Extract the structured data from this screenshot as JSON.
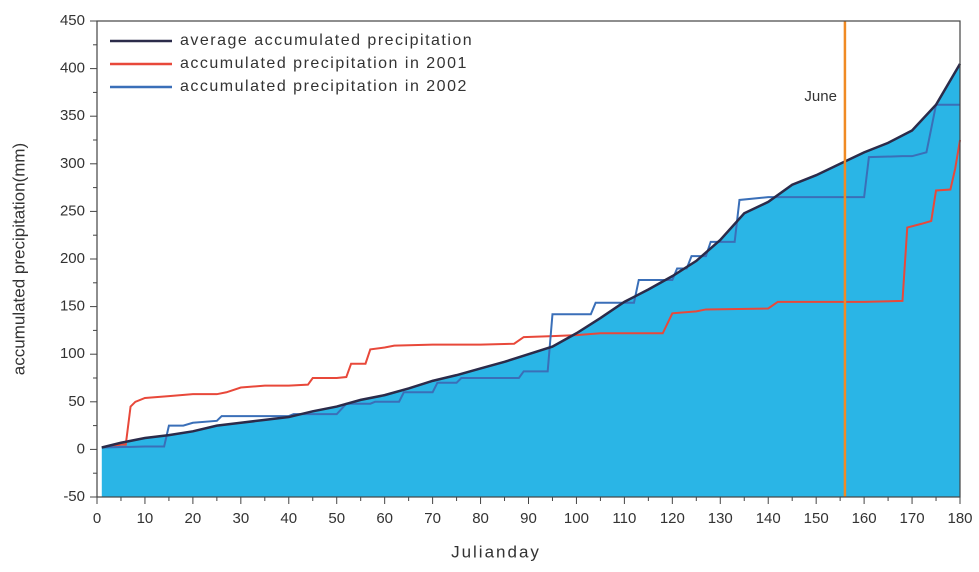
{
  "chart_data": {
    "type": "line",
    "x_label": "Julianday",
    "y_label": "accumulated precipitation(mm)",
    "xlim": [
      0,
      180
    ],
    "ylim": [
      -50,
      450
    ],
    "xticks": [
      0,
      10,
      20,
      30,
      40,
      50,
      60,
      70,
      80,
      90,
      100,
      110,
      120,
      130,
      140,
      150,
      160,
      170,
      180
    ],
    "yticks": [
      -50,
      0,
      50,
      100,
      150,
      200,
      250,
      300,
      350,
      400,
      450
    ],
    "area_color": "#2ab5e6",
    "series": [
      {
        "name": "average accumulated precipitation",
        "color": "#2b2b4a",
        "fill": true,
        "x": [
          1,
          5,
          10,
          15,
          20,
          25,
          30,
          35,
          40,
          45,
          50,
          55,
          60,
          65,
          70,
          75,
          80,
          85,
          90,
          95,
          100,
          105,
          110,
          115,
          120,
          125,
          130,
          135,
          140,
          145,
          150,
          155,
          160,
          165,
          170,
          175,
          180
        ],
        "values": [
          2,
          7,
          12,
          15,
          19,
          25,
          28,
          31,
          34,
          40,
          45,
          52,
          57,
          64,
          72,
          78,
          85,
          92,
          100,
          108,
          122,
          138,
          155,
          168,
          182,
          198,
          220,
          248,
          260,
          278,
          288,
          300,
          312,
          322,
          335,
          362,
          405
        ]
      },
      {
        "name": "accumulated precipitation in 2001",
        "color": "#e8483a",
        "x": [
          1,
          5,
          6,
          7,
          8,
          10,
          15,
          20,
          25,
          27,
          30,
          35,
          40,
          44,
          45,
          50,
          52,
          53,
          56,
          57,
          60,
          62,
          70,
          80,
          87,
          89,
          95,
          100,
          105,
          110,
          118,
          120,
          125,
          127,
          140,
          142,
          150,
          160,
          168,
          169,
          172,
          174,
          175,
          178,
          179,
          180
        ],
        "values": [
          2,
          5,
          5,
          45,
          50,
          54,
          56,
          58,
          58,
          60,
          65,
          67,
          67,
          68,
          75,
          75,
          76,
          90,
          90,
          105,
          107,
          109,
          110,
          110,
          111,
          118,
          119,
          120,
          122,
          122,
          122,
          143,
          145,
          147,
          148,
          155,
          155,
          155,
          156,
          233,
          237,
          240,
          272,
          273,
          295,
          325
        ]
      },
      {
        "name": "accumulated precipitation in 2002",
        "color": "#3a6fb8",
        "x": [
          1,
          10,
          14,
          15,
          18,
          20,
          25,
          26,
          40,
          41,
          50,
          52,
          57,
          58,
          63,
          64,
          70,
          71,
          75,
          76,
          88,
          89,
          94,
          95,
          103,
          104,
          112,
          113,
          120,
          121,
          123,
          124,
          127,
          128,
          133,
          134,
          140,
          150,
          160,
          161,
          168,
          170,
          173,
          175,
          180
        ],
        "values": [
          2,
          3,
          3,
          25,
          25,
          28,
          30,
          35,
          35,
          37,
          37,
          48,
          48,
          50,
          50,
          60,
          60,
          70,
          70,
          75,
          75,
          82,
          82,
          142,
          142,
          154,
          154,
          178,
          178,
          190,
          190,
          203,
          203,
          218,
          218,
          262,
          265,
          265,
          265,
          307,
          308,
          308,
          312,
          362,
          362
        ]
      }
    ],
    "annotation": {
      "x": 156,
      "text": "June",
      "color": "#f08a24"
    }
  }
}
